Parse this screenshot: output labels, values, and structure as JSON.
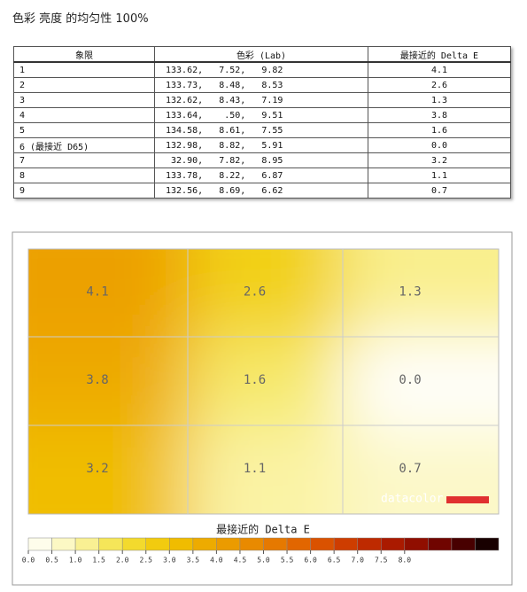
{
  "title": "色彩 亮度 的均匀性 100%",
  "table": {
    "columns": [
      "象限",
      "色彩 (Lab)",
      "最接近的 Delta E"
    ],
    "rows": [
      [
        "1",
        "133.62,   7.52,   9.82",
        "4.1"
      ],
      [
        "2",
        "133.73,   8.48,   8.53",
        "2.6"
      ],
      [
        "3",
        "132.62,   8.43,   7.19",
        "1.3"
      ],
      [
        "4",
        "133.64,    .50,   9.51",
        "3.8"
      ],
      [
        "5",
        "134.58,   8.61,   7.55",
        "1.6"
      ],
      [
        "6 (最接近 D65)",
        "132.98,   8.82,   5.91",
        "0.0"
      ],
      [
        "7",
        " 32.90,   7.82,   8.95",
        "3.2"
      ],
      [
        "8",
        "133.78,   8.22,   6.87",
        "1.1"
      ],
      [
        "9",
        "132.56,   8.69,   6.62",
        "0.7"
      ]
    ]
  },
  "chart_data": {
    "type": "heatmap",
    "values": [
      [
        4.1,
        2.6,
        1.3
      ],
      [
        3.8,
        1.6,
        0.0
      ],
      [
        3.2,
        1.1,
        0.7
      ]
    ],
    "value_labels": [
      [
        "4.1",
        "2.6",
        "1.3"
      ],
      [
        "3.8",
        "1.6",
        "0.0"
      ],
      [
        "3.2",
        "1.1",
        "0.7"
      ]
    ],
    "colorbar_title": "最接近的 Delta E",
    "zlim": [
      0,
      10
    ],
    "zticks": [
      {
        "value": 0,
        "label": "0.0"
      },
      {
        "value": 0.5,
        "label": "0.5"
      },
      {
        "value": 1,
        "label": "1.0"
      },
      {
        "value": 1.5,
        "label": "1.5"
      },
      {
        "value": 2,
        "label": "2.0"
      },
      {
        "value": 2.5,
        "label": "2.5"
      },
      {
        "value": 3,
        "label": "3.0"
      },
      {
        "value": 3.5,
        "label": "3.5"
      },
      {
        "value": 4,
        "label": "4.0"
      },
      {
        "value": 4.5,
        "label": "4.5"
      },
      {
        "value": 5,
        "label": "5.0"
      },
      {
        "value": 5.5,
        "label": "5.5"
      },
      {
        "value": 6,
        "label": "6.0"
      },
      {
        "value": 6.5,
        "label": "6.5"
      },
      {
        "value": 7,
        "label": "7.0"
      },
      {
        "value": 7.5,
        "label": "7.5"
      },
      {
        "value": 8,
        "label": "8.0"
      }
    ],
    "colormap": [
      "#ffffff",
      "#fbf5b0",
      "#f3e13c",
      "#f1c400",
      "#eca300",
      "#e88200",
      "#e05c00",
      "#c83200",
      "#a01200",
      "#600000",
      "#000000"
    ],
    "logo": "datacolor"
  }
}
